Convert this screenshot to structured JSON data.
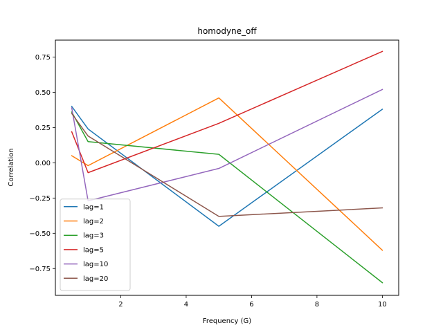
{
  "chart_data": {
    "type": "line",
    "title": "homodyne_off",
    "xlabel": "Frequency (G)",
    "ylabel": "Correlation",
    "xlim": [
      0.0,
      10.5
    ],
    "ylim": [
      -0.94,
      0.87
    ],
    "x_ticks": [
      2,
      4,
      6,
      8,
      10
    ],
    "x_tick_labels": [
      "2",
      "4",
      "6",
      "8",
      "10"
    ],
    "y_ticks": [
      -0.75,
      -0.5,
      -0.25,
      0.0,
      0.25,
      0.5,
      0.75
    ],
    "y_tick_labels": [
      "−0.75",
      "−0.50",
      "−0.25",
      "0.00",
      "0.25",
      "0.50",
      "0.75"
    ],
    "grid": false,
    "legend_position": "lower-left",
    "x": [
      0.5,
      1,
      5,
      10
    ],
    "series": [
      {
        "name": "lag=1",
        "color": "#1f77b4",
        "values": [
          0.4,
          0.24,
          -0.45,
          0.38
        ]
      },
      {
        "name": "lag=2",
        "color": "#ff7f0e",
        "values": [
          0.05,
          -0.02,
          0.46,
          -0.62
        ]
      },
      {
        "name": "lag=3",
        "color": "#2ca02c",
        "values": [
          0.36,
          0.15,
          0.06,
          -0.85
        ]
      },
      {
        "name": "lag=5",
        "color": "#d62728",
        "values": [
          0.22,
          -0.07,
          0.28,
          0.79
        ]
      },
      {
        "name": "lag=10",
        "color": "#9467bd",
        "values": [
          0.39,
          -0.27,
          -0.04,
          0.52
        ]
      },
      {
        "name": "lag=20",
        "color": "#8c564b",
        "values": [
          0.35,
          0.19,
          -0.38,
          -0.32
        ]
      }
    ]
  }
}
